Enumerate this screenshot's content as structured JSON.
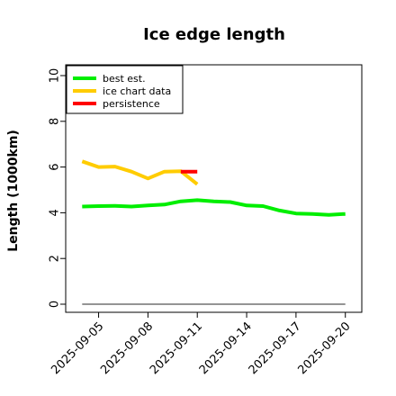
{
  "chart_data": {
    "type": "line",
    "title": "Ice edge length",
    "ylabel": "Length (1000km)",
    "xlabel": "",
    "ylim": [
      0,
      10
    ],
    "yticks": [
      0,
      2,
      4,
      6,
      8,
      10
    ],
    "xlim": [
      "2025-09-03",
      "2025-09-21"
    ],
    "xticks": [
      "2025-09-05",
      "2025-09-08",
      "2025-09-11",
      "2025-09-14",
      "2025-09-17",
      "2025-09-20"
    ],
    "grid": false,
    "legend_position": "top-left",
    "series": [
      {
        "name": "best est.",
        "color": "#00ee00",
        "x": [
          "2025-09-04",
          "2025-09-05",
          "2025-09-06",
          "2025-09-07",
          "2025-09-08",
          "2025-09-09",
          "2025-09-10",
          "2025-09-11",
          "2025-09-12",
          "2025-09-13",
          "2025-09-14",
          "2025-09-15",
          "2025-09-16",
          "2025-09-17",
          "2025-09-18",
          "2025-09-19",
          "2025-09-20"
        ],
        "y": [
          4.27,
          4.29,
          4.3,
          4.27,
          4.32,
          4.36,
          4.5,
          4.55,
          4.5,
          4.47,
          4.32,
          4.29,
          4.1,
          3.97,
          3.95,
          3.91,
          3.95
        ]
      },
      {
        "name": "ice chart data",
        "color": "#ffcc00",
        "x": [
          "2025-09-04",
          "2025-09-05",
          "2025-09-06",
          "2025-09-07",
          "2025-09-08",
          "2025-09-09",
          "2025-09-10",
          "2025-09-11"
        ],
        "y": [
          6.25,
          6.0,
          6.02,
          5.8,
          5.5,
          5.8,
          5.82,
          5.25
        ]
      },
      {
        "name": "persistence",
        "color": "#ff0000",
        "x": [
          "2025-09-10",
          "2025-09-11"
        ],
        "y": [
          5.8,
          5.8
        ]
      },
      {
        "name": "",
        "color": "#707070",
        "x": [
          "2025-09-04",
          "2025-09-20"
        ],
        "y": [
          0,
          0
        ]
      }
    ]
  }
}
